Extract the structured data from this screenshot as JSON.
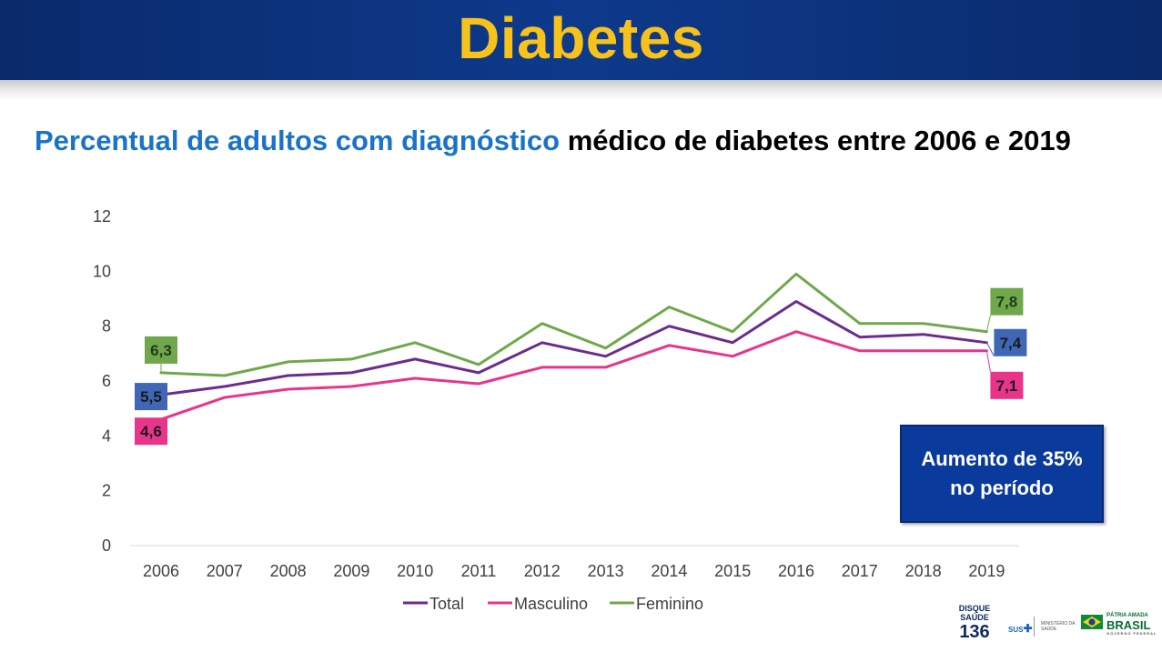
{
  "header": {
    "title": "Diabetes"
  },
  "subtitle": {
    "part_blue": "Percentual de adultos com diagnóstico",
    "part_black": "médico de diabetes entre 2006 e 2019"
  },
  "callout": {
    "line1": "Aumento de 35%",
    "line2": "no período"
  },
  "colors": {
    "header_bg": "#0e3a8c",
    "title_yellow": "#f7c21b",
    "subtitle_blue": "#1a73c9",
    "total": "#6a2c8e",
    "masculino": "#e8358a",
    "feminino": "#6fa84a",
    "label_total_bg": "#3f67b5",
    "label_masc_bg": "#e8358a",
    "label_fem_bg": "#6fa84a",
    "callout_bg": "#0a3a9c"
  },
  "logos": {
    "disque_line1": "DISQUE",
    "disque_line2": "SAÚDE",
    "disque_number": "136",
    "sus": "SUS",
    "ministerio": "MINISTÉRIO DA SAÚDE",
    "patria": "PÁTRIA AMADA",
    "brasil": "BRASIL",
    "governo": "GOVERNO FEDERAL"
  },
  "chart_data": {
    "type": "line",
    "title": "",
    "xlabel": "",
    "ylabel": "",
    "x": [
      "2006",
      "2007",
      "2008",
      "2009",
      "2010",
      "2011",
      "2012",
      "2013",
      "2014",
      "2015",
      "2016",
      "2017",
      "2018",
      "2019"
    ],
    "ylim": [
      0,
      12
    ],
    "yticks": [
      0,
      2,
      4,
      6,
      8,
      10,
      12
    ],
    "grid": false,
    "legend_position": "bottom",
    "series": [
      {
        "name": "Total",
        "color": "#6a2c8e",
        "values": [
          5.5,
          5.8,
          6.2,
          6.3,
          6.8,
          6.3,
          7.4,
          6.9,
          8.0,
          7.4,
          8.9,
          7.6,
          7.7,
          7.4
        ]
      },
      {
        "name": "Masculino",
        "color": "#e8358a",
        "values": [
          4.6,
          5.4,
          5.7,
          5.8,
          6.1,
          5.9,
          6.5,
          6.5,
          7.3,
          6.9,
          7.8,
          7.1,
          7.1,
          7.1
        ]
      },
      {
        "name": "Feminino",
        "color": "#6fa84a",
        "values": [
          6.3,
          6.2,
          6.7,
          6.8,
          7.4,
          6.6,
          8.1,
          7.2,
          8.7,
          7.8,
          9.9,
          8.1,
          8.1,
          7.8
        ]
      }
    ],
    "annotations": [
      {
        "series": "Feminino",
        "x": "2006",
        "text": "6,3"
      },
      {
        "series": "Total",
        "x": "2006",
        "text": "5,5"
      },
      {
        "series": "Masculino",
        "x": "2006",
        "text": "4,6"
      },
      {
        "series": "Feminino",
        "x": "2019",
        "text": "7,8"
      },
      {
        "series": "Total",
        "x": "2019",
        "text": "7,4"
      },
      {
        "series": "Masculino",
        "x": "2019",
        "text": "7,1"
      }
    ]
  }
}
